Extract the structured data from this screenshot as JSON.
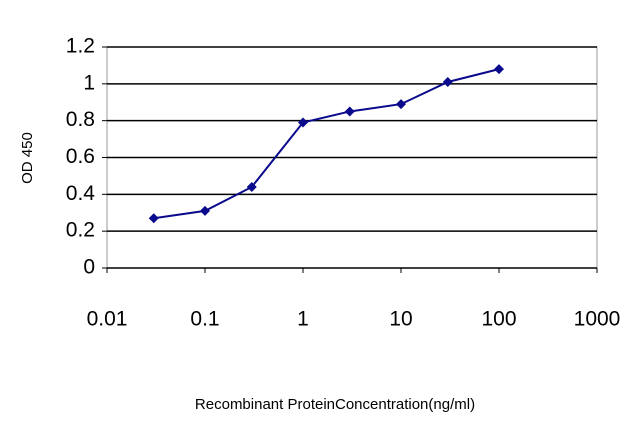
{
  "chart_data": {
    "type": "line",
    "x_label": "Recombinant ProteinConcentration(ng/ml)",
    "y_label": "OD 450",
    "x": [
      0.03,
      0.1,
      0.3,
      1,
      3,
      10,
      30,
      100
    ],
    "values": [
      0.27,
      0.31,
      0.44,
      0.79,
      0.85,
      0.89,
      1.01,
      1.08
    ],
    "color": "#0a0a8c",
    "xscale": "log",
    "xlim": [
      0.01,
      1000
    ],
    "xticks": [
      0.01,
      0.1,
      1,
      10,
      100,
      1000
    ],
    "ylim": [
      0,
      1.2
    ],
    "yticks": [
      0,
      0.2,
      0.4,
      0.6,
      0.8,
      1,
      1.2
    ],
    "grid": true
  }
}
